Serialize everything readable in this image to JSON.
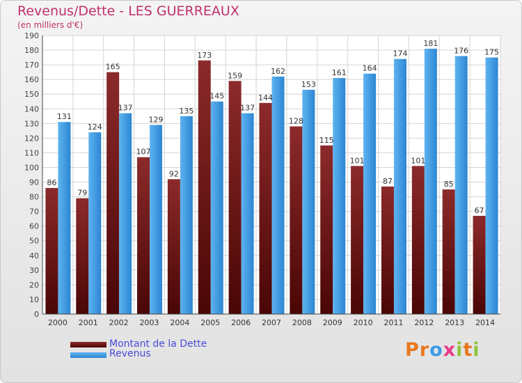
{
  "header": {
    "title": "Revenus/Dette - LES GUERREAUX",
    "subtitle": "(en milliers d'€)"
  },
  "chart_data": {
    "type": "bar",
    "categories": [
      "2000",
      "2001",
      "2002",
      "2003",
      "2004",
      "2005",
      "2006",
      "2007",
      "2008",
      "2009",
      "2010",
      "2011",
      "2012",
      "2013",
      "2014"
    ],
    "series": [
      {
        "name": "Montant de la Dette",
        "values": [
          86,
          79,
          165,
          107,
          92,
          173,
          159,
          144,
          128,
          115,
          101,
          87,
          101,
          85,
          67
        ]
      },
      {
        "name": "Revenus",
        "values": [
          131,
          124,
          137,
          129,
          135,
          145,
          137,
          162,
          153,
          161,
          164,
          174,
          181,
          176,
          175
        ]
      }
    ],
    "ylim": [
      0,
      190
    ],
    "ytick_step": 10,
    "grid": true,
    "colors": {
      "Montant de la Dette": "#7a1a1a",
      "Revenus": "#3d9be6"
    }
  },
  "legend": {
    "items": [
      {
        "label": "Montant de la Dette",
        "color": "#6e1212"
      },
      {
        "label": "Revenus",
        "color": "#3d9be6"
      }
    ]
  },
  "logo": {
    "text": "Proxiti"
  }
}
